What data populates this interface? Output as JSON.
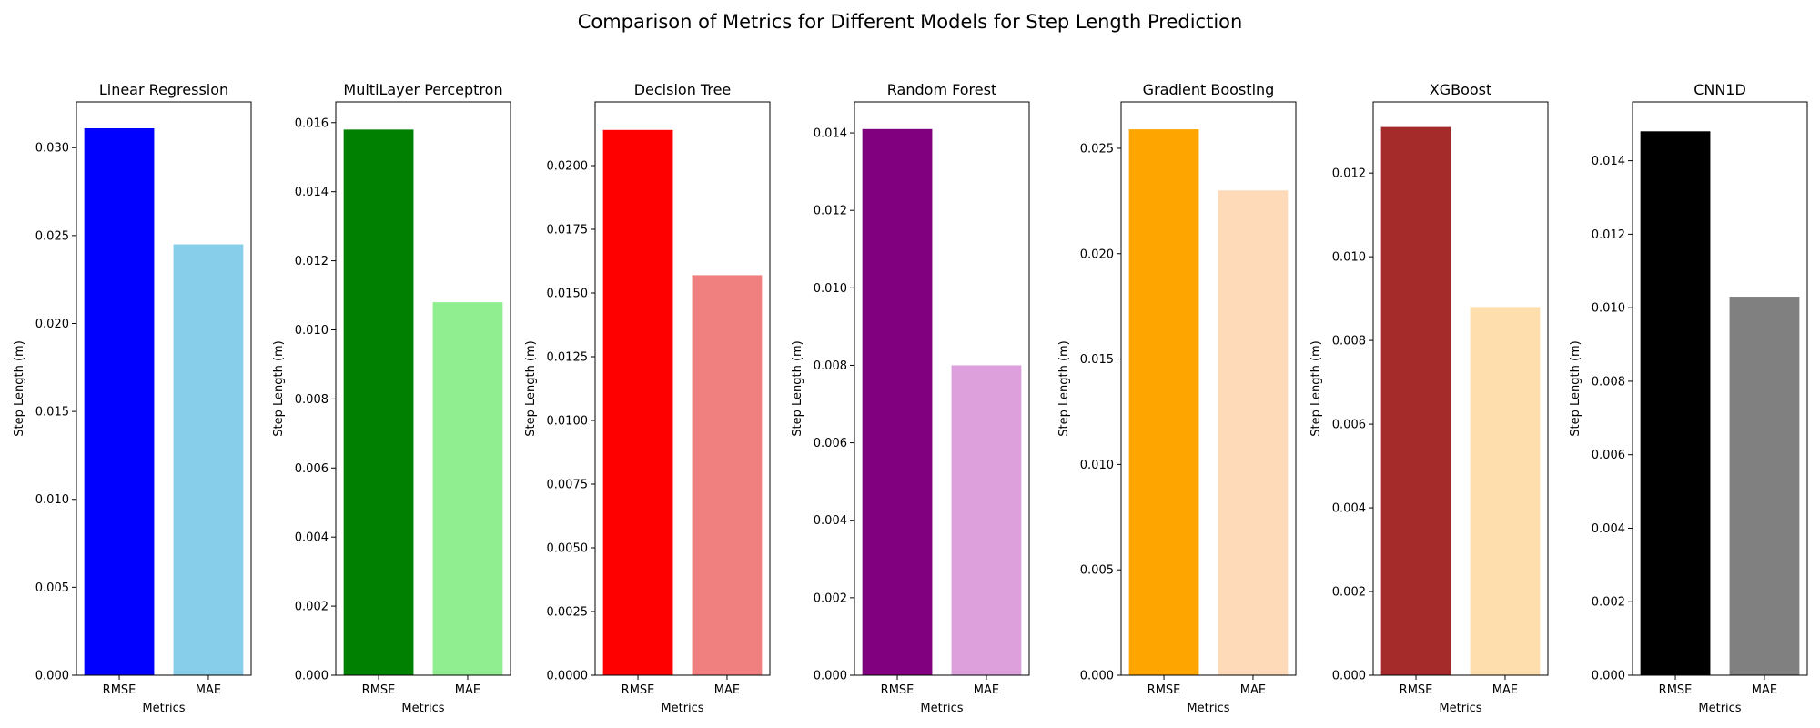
{
  "figure": {
    "title": "Comparison of Metrics for Different Models for Step Length Prediction"
  },
  "chart_data": [
    {
      "type": "bar",
      "title": "Linear Regression",
      "categories": [
        "RMSE",
        "MAE"
      ],
      "values": [
        0.0311,
        0.0245
      ],
      "colors": [
        "#0000ff",
        "#87ceeb"
      ],
      "xlabel": "Metrics",
      "ylabel": "Step Length (m)",
      "ylim": [
        0,
        0.0326
      ],
      "yticks": [
        0,
        0.005,
        0.01,
        0.015,
        0.02,
        0.025,
        0.03
      ],
      "ytick_labels": [
        "0.000",
        "0.005",
        "0.010",
        "0.015",
        "0.020",
        "0.025",
        "0.030"
      ]
    },
    {
      "type": "bar",
      "title": "MultiLayer Perceptron",
      "categories": [
        "RMSE",
        "MAE"
      ],
      "values": [
        0.0158,
        0.0108
      ],
      "colors": [
        "#008000",
        "#90ee90"
      ],
      "xlabel": "Metrics",
      "ylabel": "Step Length (m)",
      "ylim": [
        0,
        0.0166
      ],
      "yticks": [
        0,
        0.002,
        0.004,
        0.006,
        0.008,
        0.01,
        0.012,
        0.014,
        0.016
      ],
      "ytick_labels": [
        "0.000",
        "0.002",
        "0.004",
        "0.006",
        "0.008",
        "0.010",
        "0.012",
        "0.014",
        "0.016"
      ]
    },
    {
      "type": "bar",
      "title": "Decision Tree",
      "categories": [
        "RMSE",
        "MAE"
      ],
      "values": [
        0.0214,
        0.0157
      ],
      "colors": [
        "#ff0000",
        "#f08080"
      ],
      "xlabel": "Metrics",
      "ylabel": "Step Length (m)",
      "ylim": [
        0,
        0.0225
      ],
      "yticks": [
        0,
        0.0025,
        0.005,
        0.0075,
        0.01,
        0.0125,
        0.015,
        0.0175,
        0.02
      ],
      "ytick_labels": [
        "0.0000",
        "0.0025",
        "0.0050",
        "0.0075",
        "0.0100",
        "0.0125",
        "0.0150",
        "0.0175",
        "0.0200"
      ]
    },
    {
      "type": "bar",
      "title": "Random Forest",
      "categories": [
        "RMSE",
        "MAE"
      ],
      "values": [
        0.0141,
        0.008
      ],
      "colors": [
        "#800080",
        "#dda0dd"
      ],
      "xlabel": "Metrics",
      "ylabel": "Step Length (m)",
      "ylim": [
        0,
        0.0148
      ],
      "yticks": [
        0,
        0.002,
        0.004,
        0.006,
        0.008,
        0.01,
        0.012,
        0.014
      ],
      "ytick_labels": [
        "0.000",
        "0.002",
        "0.004",
        "0.006",
        "0.008",
        "0.010",
        "0.012",
        "0.014"
      ]
    },
    {
      "type": "bar",
      "title": "Gradient Boosting",
      "categories": [
        "RMSE",
        "MAE"
      ],
      "values": [
        0.0259,
        0.023
      ],
      "colors": [
        "#ffa500",
        "#ffdab9"
      ],
      "xlabel": "Metrics",
      "ylabel": "Step Length (m)",
      "ylim": [
        0,
        0.0272
      ],
      "yticks": [
        0,
        0.005,
        0.01,
        0.015,
        0.02,
        0.025
      ],
      "ytick_labels": [
        "0.000",
        "0.005",
        "0.010",
        "0.015",
        "0.020",
        "0.025"
      ]
    },
    {
      "type": "bar",
      "title": "XGBoost",
      "categories": [
        "RMSE",
        "MAE"
      ],
      "values": [
        0.0131,
        0.0088
      ],
      "colors": [
        "#a52a2a",
        "#ffdead"
      ],
      "xlabel": "Metrics",
      "ylabel": "Step Length (m)",
      "ylim": [
        0,
        0.0137
      ],
      "yticks": [
        0,
        0.002,
        0.004,
        0.006,
        0.008,
        0.01,
        0.012
      ],
      "ytick_labels": [
        "0.000",
        "0.002",
        "0.004",
        "0.006",
        "0.008",
        "0.010",
        "0.012"
      ]
    },
    {
      "type": "bar",
      "title": "CNN1D",
      "categories": [
        "RMSE",
        "MAE"
      ],
      "values": [
        0.0148,
        0.0103
      ],
      "colors": [
        "#000000",
        "#808080"
      ],
      "xlabel": "Metrics",
      "ylabel": "Step Length (m)",
      "ylim": [
        0,
        0.0156
      ],
      "yticks": [
        0,
        0.002,
        0.004,
        0.006,
        0.008,
        0.01,
        0.012,
        0.014
      ],
      "ytick_labels": [
        "0.000",
        "0.002",
        "0.004",
        "0.006",
        "0.008",
        "0.010",
        "0.012",
        "0.014"
      ]
    }
  ]
}
